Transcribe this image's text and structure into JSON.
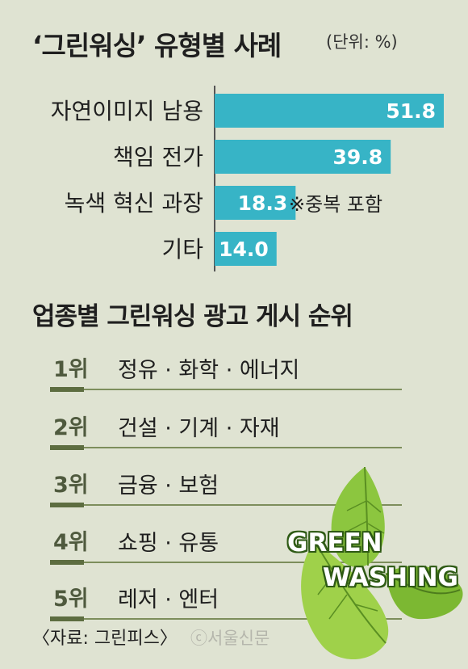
{
  "header": {
    "title": "‘그린워싱’ 유형별 사례",
    "unit": "(단위: %)"
  },
  "chart_data": {
    "type": "bar",
    "orientation": "horizontal",
    "title": "‘그린워싱’ 유형별 사례",
    "unit": "(단위: %)",
    "categories": [
      "자연이미지 남용",
      "책임 전가",
      "녹색 혁신 과장",
      "기타"
    ],
    "values": [
      51.8,
      39.8,
      18.3,
      14.0
    ],
    "value_labels": [
      "51.8",
      "39.8",
      "18.3",
      "14.0"
    ],
    "xlim": [
      0,
      51.8
    ],
    "bar_color": "#37b4c6",
    "value_label_color": "#ffffff",
    "grid": false,
    "annotation": "※중복 포함"
  },
  "ranking": {
    "title": "업종별 그린워싱 광고 게시 순위",
    "items": [
      {
        "rank": "1위",
        "text": "정유 · 화학 · 에너지"
      },
      {
        "rank": "2위",
        "text": "건설 · 기계 · 자재"
      },
      {
        "rank": "3위",
        "text": "금융 · 보험"
      },
      {
        "rank": "4위",
        "text": "쇼핑 · 유통"
      },
      {
        "rank": "5위",
        "text": "레저 · 엔터"
      }
    ]
  },
  "badge": {
    "line1": "GREEN",
    "line2": "WASHING"
  },
  "footer": {
    "source": "〈자료: 그린피스〉",
    "logo": "ⓒ서울신문"
  },
  "colors": {
    "background": "#dfe3d2",
    "bar": "#37b4c6",
    "rank_accent": "#5d6d40",
    "leaf": "#7cb832"
  }
}
